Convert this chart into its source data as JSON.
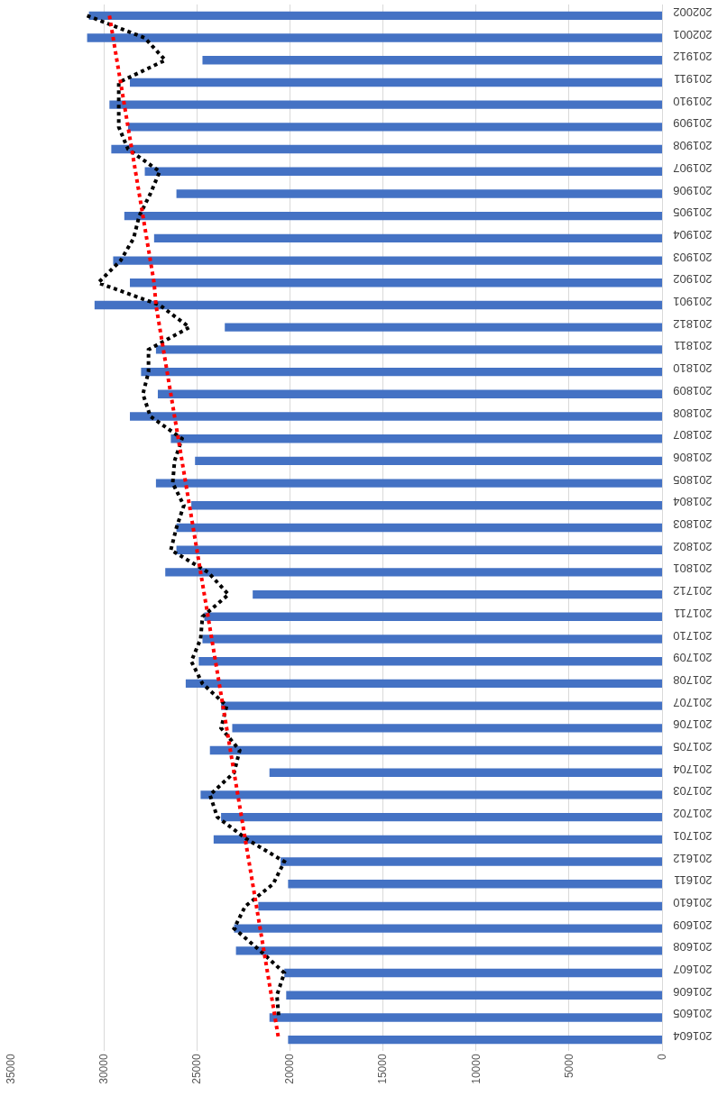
{
  "chart_data": {
    "type": "bar",
    "orientation": "horizontal",
    "categories": [
      "202002",
      "202001",
      "201912",
      "201911",
      "201910",
      "201909",
      "201908",
      "201907",
      "201906",
      "201905",
      "201904",
      "201903",
      "201902",
      "201901",
      "201812",
      "201811",
      "201810",
      "201809",
      "201808",
      "201807",
      "201806",
      "201805",
      "201804",
      "201803",
      "201802",
      "201801",
      "201712",
      "201711",
      "201710",
      "201709",
      "201708",
      "201707",
      "201706",
      "201705",
      "201704",
      "201703",
      "201702",
      "201701",
      "201612",
      "201611",
      "201610",
      "201609",
      "201608",
      "201607",
      "201606",
      "201605",
      "201604"
    ],
    "series": [
      {
        "color": "#4472c4",
        "values": [
          30800,
          30900,
          24700,
          28600,
          29700,
          28700,
          29600,
          27800,
          26100,
          28900,
          27300,
          29500,
          28600,
          30500,
          23500,
          27200,
          28000,
          27100,
          28600,
          26400,
          25100,
          27200,
          25300,
          26100,
          26100,
          26700,
          22000,
          24600,
          24700,
          24900,
          25600,
          23700,
          23100,
          24300,
          21100,
          24800,
          23700,
          24100,
          20500,
          20100,
          21700,
          23000,
          22900,
          20300,
          20200,
          21100,
          20100
        ]
      },
      {
        "type": "line",
        "color": "#000000",
        "line_style": "dotted",
        "marker": "none",
        "values": [
          30900,
          27800,
          26700,
          29200,
          29200,
          29200,
          28700,
          27000,
          27500,
          28100,
          28400,
          29100,
          30300,
          27000,
          25400,
          27600,
          27600,
          27900,
          27500,
          25800,
          26200,
          26300,
          25700,
          26100,
          26400,
          24400,
          23300,
          24700,
          24800,
          25300,
          24700,
          23400,
          23700,
          22700,
          23000,
          24300,
          23900,
          22300,
          20300,
          20900,
          22400,
          23000,
          21600,
          20300,
          20700,
          20600,
          null
        ]
      },
      {
        "type": "line",
        "color": "#ff0000",
        "line_style": "dotted",
        "marker": "none",
        "values": [
          29700,
          29500,
          29300,
          29100,
          28900,
          28700,
          28500,
          28300,
          28100,
          27900,
          27700,
          27500,
          27300,
          27200,
          27000,
          26800,
          26600,
          26400,
          26200,
          26000,
          25800,
          25600,
          25400,
          25200,
          25000,
          24800,
          24600,
          24400,
          24200,
          24000,
          23800,
          23600,
          23400,
          23200,
          23000,
          22800,
          22600,
          22400,
          22200,
          22000,
          21800,
          21600,
          21400,
          21200,
          21000,
          20800,
          20600
        ]
      }
    ],
    "xlim": [
      35000,
      0
    ],
    "xticks": [
      0,
      5000,
      10000,
      15000,
      20000,
      25000,
      30000,
      35000
    ],
    "grid": "x",
    "legend": false
  }
}
